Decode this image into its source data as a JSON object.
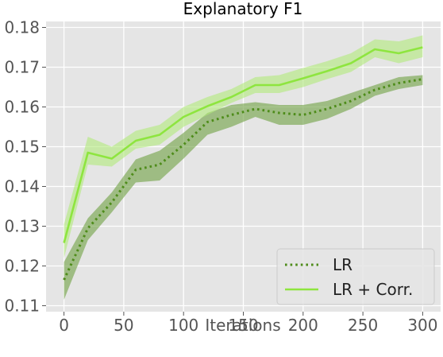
{
  "chart_data": {
    "type": "line",
    "title": "Explanatory F1",
    "xlabel": "Iterations",
    "ylabel": "",
    "xlim": [
      -15,
      315
    ],
    "ylim": [
      0.1085,
      0.1815
    ],
    "xticks": [
      0,
      50,
      100,
      150,
      200,
      250,
      300
    ],
    "yticks": [
      0.11,
      0.12,
      0.13,
      0.14,
      0.15,
      0.16,
      0.17,
      0.18
    ],
    "ytick_labels": [
      "0.11",
      "0.12",
      "0.13",
      "0.14",
      "0.15",
      "0.16",
      "0.17",
      "0.18"
    ],
    "grid": true,
    "legend_position": "bottom-right",
    "x": [
      0,
      20,
      40,
      60,
      80,
      100,
      120,
      140,
      160,
      180,
      200,
      220,
      240,
      260,
      280,
      300
    ],
    "series": [
      {
        "name": "LR",
        "style": "dotted",
        "color": "#4e8c1a",
        "band_color": "#6ea041",
        "values": [
          0.1165,
          0.1295,
          0.136,
          0.1442,
          0.1455,
          0.1505,
          0.1562,
          0.158,
          0.1595,
          0.1585,
          0.158,
          0.1595,
          0.1615,
          0.1643,
          0.166,
          0.167
        ],
        "lower": [
          0.1115,
          0.1265,
          0.1335,
          0.141,
          0.1415,
          0.147,
          0.153,
          0.155,
          0.1575,
          0.1555,
          0.1555,
          0.157,
          0.1595,
          0.1628,
          0.1645,
          0.1655
        ],
        "upper": [
          0.121,
          0.132,
          0.1385,
          0.1468,
          0.149,
          0.1535,
          0.1585,
          0.1605,
          0.1612,
          0.1605,
          0.1605,
          0.1615,
          0.1635,
          0.1655,
          0.1675,
          0.168
        ]
      },
      {
        "name": "LR + Corr.",
        "style": "solid",
        "color": "#8ee53f",
        "band_color": "#b0ea7a",
        "values": [
          0.1258,
          0.1485,
          0.147,
          0.1515,
          0.153,
          0.1575,
          0.1602,
          0.1625,
          0.1655,
          0.1655,
          0.1672,
          0.169,
          0.171,
          0.1745,
          0.1735,
          0.175
        ],
        "lower": [
          0.122,
          0.1455,
          0.145,
          0.1495,
          0.1505,
          0.155,
          0.158,
          0.161,
          0.1635,
          0.1635,
          0.165,
          0.167,
          0.1688,
          0.1725,
          0.171,
          0.1725
        ],
        "upper": [
          0.1305,
          0.1525,
          0.15,
          0.154,
          0.1555,
          0.16,
          0.1625,
          0.1645,
          0.1675,
          0.168,
          0.1698,
          0.1715,
          0.1735,
          0.177,
          0.1765,
          0.178
        ]
      }
    ]
  }
}
